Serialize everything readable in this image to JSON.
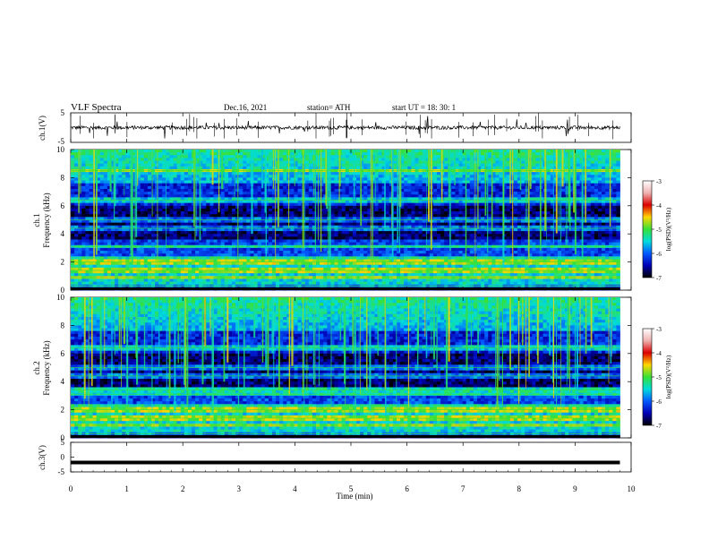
{
  "header": {
    "title": "VLF  Spectra",
    "date": "Dec.16, 2021",
    "station": "station= ATH",
    "start": "start  UT  =    18: 30: 1"
  },
  "colors": {
    "spectrogram_stops": [
      "#000000",
      "#0000b4",
      "#005aff",
      "#00dcdc",
      "#37e137",
      "#ffd700",
      "#dc0000",
      "#f0b0b0",
      "#ffffff"
    ],
    "trace": "#000000"
  },
  "chart_data": [
    {
      "type": "line",
      "panel": "ch1",
      "ylabel": "ch.1(V)",
      "ylim": [
        -5,
        5
      ],
      "yticks": [
        "5",
        "-5"
      ],
      "xlim": [
        0,
        10
      ],
      "description_values": {
        "mean": 0,
        "amplitude": 0.6
      }
    },
    {
      "type": "heatmap",
      "panel": "ch1-spectrogram",
      "ylabel": "ch.1\nFrequency (kHz)",
      "ylim": [
        0,
        10
      ],
      "yticks": [
        "0",
        "2",
        "4",
        "6",
        "8",
        "10"
      ],
      "xlim": [
        0,
        9.8
      ],
      "colorbar": {
        "label": "log(PSD)(V²/Hz)",
        "range": [
          -7,
          -3
        ],
        "ticks": [
          "-3",
          "-4",
          "-5",
          "-6",
          "-7"
        ]
      },
      "bands_khz": [
        0.3,
        0.9,
        1.4,
        2.0,
        2.3,
        3.1,
        4.4,
        5.0,
        6.4,
        8.5
      ]
    },
    {
      "type": "heatmap",
      "panel": "ch2-spectrogram",
      "ylabel": "ch.2\nFrequency (kHz)",
      "ylim": [
        0,
        10
      ],
      "yticks": [
        "0",
        "2",
        "4",
        "6",
        "8",
        "10"
      ],
      "xlim": [
        0,
        9.8
      ],
      "colorbar": {
        "label": "log(PSD)(V²/Hz)",
        "range": [
          -7,
          -3
        ],
        "ticks": [
          "-3",
          "-4",
          "-5",
          "-6",
          "-7"
        ]
      },
      "bands_khz": [
        0.3,
        0.9,
        1.4,
        2.0,
        2.3,
        3.1,
        3.4,
        4.4,
        5.0,
        6.4
      ]
    },
    {
      "type": "line",
      "panel": "ch3",
      "ylabel": "ch.3(V)",
      "ylim": [
        -5,
        5
      ],
      "yticks": [
        "5",
        "0",
        "-5"
      ],
      "xlim": [
        0,
        10
      ],
      "xticks": [
        "0",
        "1",
        "2",
        "3",
        "4",
        "5",
        "6",
        "7",
        "8",
        "9",
        "10"
      ],
      "xlabel": "Time  (min)",
      "description_values": {
        "constant": -1.8
      }
    }
  ]
}
